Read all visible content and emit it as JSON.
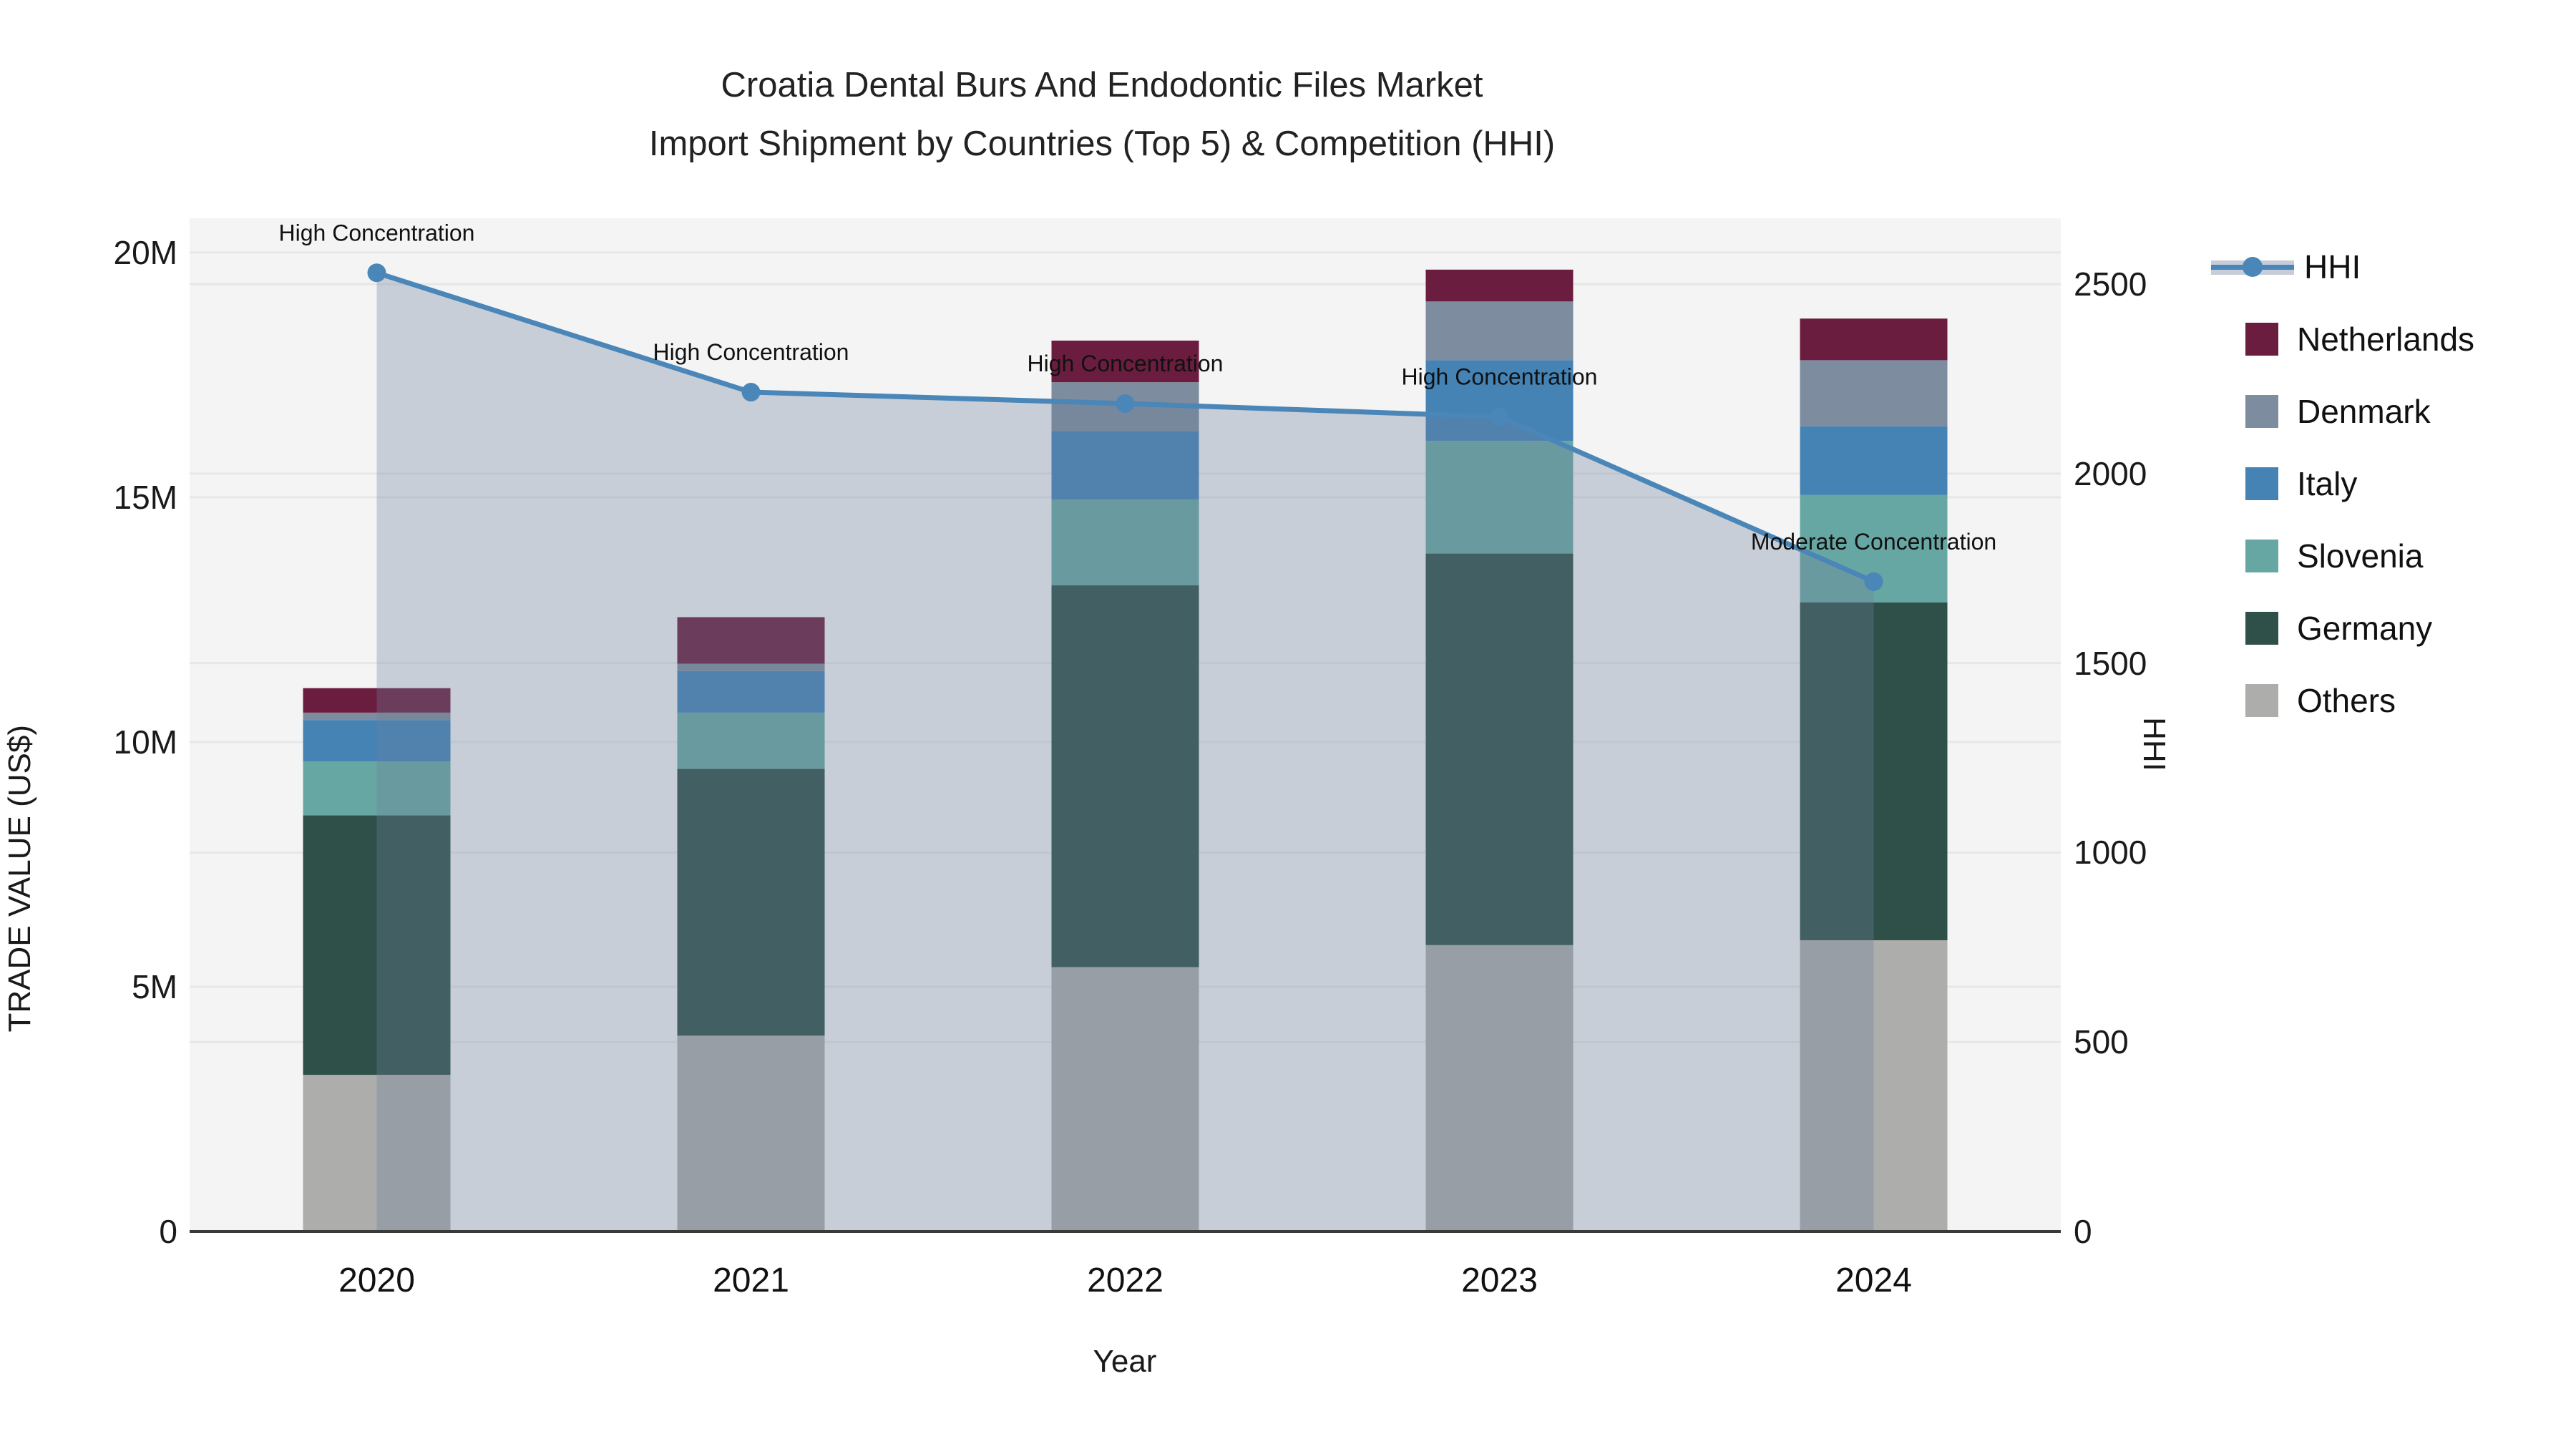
{
  "title": {
    "line1": "Croatia Dental Burs And Endodontic Files Market",
    "line2": "Import Shipment by Countries (Top 5) & Competition (HHI)"
  },
  "axes": {
    "y_left": {
      "title": "TRADE VALUE (US$)",
      "ticks": [
        {
          "label": "0",
          "value": 0
        },
        {
          "label": "5M",
          "value": 5
        },
        {
          "label": "10M",
          "value": 10
        },
        {
          "label": "15M",
          "value": 15
        },
        {
          "label": "20M",
          "value": 20
        }
      ]
    },
    "y_right": {
      "title": "HHI",
      "ticks": [
        {
          "label": "0",
          "value": 0
        },
        {
          "label": "500",
          "value": 500
        },
        {
          "label": "1000",
          "value": 1000
        },
        {
          "label": "1500",
          "value": 1500
        },
        {
          "label": "2000",
          "value": 2000
        },
        {
          "label": "2500",
          "value": 2500
        }
      ]
    },
    "x": {
      "title": "Year"
    }
  },
  "legend": [
    {
      "label": "HHI",
      "type": "line",
      "color": "#4A86B8",
      "band_color": "#c6cdd8"
    },
    {
      "label": "Netherlands",
      "type": "swatch",
      "color": "#6B1D3F"
    },
    {
      "label": "Denmark",
      "type": "swatch",
      "color": "#7D8C9E"
    },
    {
      "label": "Italy",
      "type": "swatch",
      "color": "#4583B5"
    },
    {
      "label": "Slovenia",
      "type": "swatch",
      "color": "#67A7A3"
    },
    {
      "label": "Germany",
      "type": "swatch",
      "color": "#2F5049"
    },
    {
      "label": "Others",
      "type": "swatch",
      "color": "#ADADAB"
    }
  ],
  "colors": {
    "plot_bg": "#f4f4f4",
    "figure_bg": "#ffffff",
    "gridline": "#e7e7e7",
    "axis_line": "#3a3a3a",
    "hhi_line": "#4A86B8",
    "hhi_area_fill": "rgba(110,127,155,0.32)",
    "annotation_text": "#111111"
  },
  "chart_data": {
    "type": [
      "bar",
      "line"
    ],
    "categories": [
      "2020",
      "2021",
      "2022",
      "2023",
      "2024"
    ],
    "units_left": "millions USD",
    "bar_stack_order_bottom_to_top": [
      "Others",
      "Germany",
      "Slovenia",
      "Italy",
      "Denmark",
      "Netherlands"
    ],
    "series": [
      {
        "name": "Others",
        "color": "#ADADAB",
        "values": [
          3.2,
          4.0,
          5.4,
          5.85,
          5.95
        ]
      },
      {
        "name": "Germany",
        "color": "#2F5049",
        "values": [
          5.3,
          5.45,
          7.8,
          8.0,
          6.9
        ]
      },
      {
        "name": "Slovenia",
        "color": "#67A7A3",
        "values": [
          1.1,
          1.15,
          1.75,
          2.3,
          2.2
        ]
      },
      {
        "name": "Italy",
        "color": "#4583B5",
        "values": [
          0.85,
          0.85,
          1.4,
          1.65,
          1.4
        ]
      },
      {
        "name": "Denmark",
        "color": "#7D8C9E",
        "values": [
          0.15,
          0.15,
          1.0,
          1.2,
          1.35
        ]
      },
      {
        "name": "Netherlands",
        "color": "#6B1D3F",
        "values": [
          0.5,
          0.95,
          0.85,
          0.65,
          0.85
        ]
      }
    ],
    "bar_totals": [
      11.1,
      12.55,
      18.2,
      19.65,
      18.65
    ],
    "line_series": {
      "name": "HHI",
      "axis": "right",
      "values": [
        2530,
        2215,
        2185,
        2150,
        1715
      ]
    },
    "annotations": [
      {
        "year": "2020",
        "text": "High Concentration"
      },
      {
        "year": "2021",
        "text": "High Concentration"
      },
      {
        "year": "2022",
        "text": "High Concentration"
      },
      {
        "year": "2023",
        "text": "High Concentration"
      },
      {
        "year": "2024",
        "text": "Moderate Concentration"
      }
    ],
    "ylim_left": [
      0,
      20.7
    ],
    "ylim_right": [
      0,
      2674
    ],
    "grid": true,
    "legend_position": "right"
  }
}
